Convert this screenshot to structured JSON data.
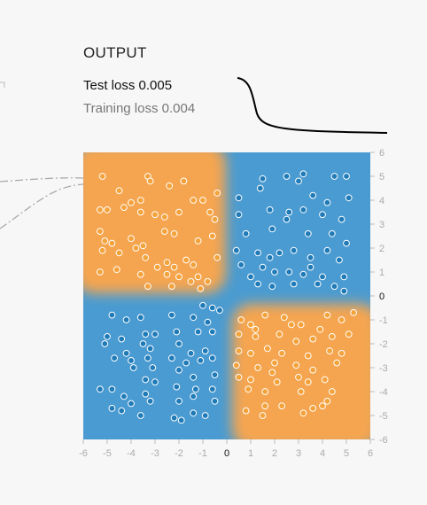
{
  "output": {
    "title": "OUTPUT",
    "test_loss_label": "Test loss",
    "test_loss_value": "0.005",
    "training_loss_label": "Training loss",
    "training_loss_value": "0.004"
  },
  "colors": {
    "orange": "#f5a54f",
    "blue": "#4a9bd1",
    "orange_point": "#f4a23a",
    "blue_point": "#1f7ab8",
    "loss_line": "#000000"
  },
  "chart_data": {
    "type": "scatter",
    "title": "",
    "xlabel": "",
    "ylabel": "",
    "xlim": [
      -6,
      6
    ],
    "ylim": [
      -6,
      6
    ],
    "x_ticks": [
      "-6",
      "-5",
      "-4",
      "-3",
      "-2",
      "-1",
      "0",
      "1",
      "2",
      "3",
      "4",
      "5",
      "6"
    ],
    "y_ticks": [
      "6",
      "5",
      "4",
      "3",
      "2",
      "1",
      "0",
      "-1",
      "-2",
      "-3",
      "-4",
      "-5",
      "-6"
    ],
    "background": "XOR decision regions: orange where x*y > 0, blue where x*y < 0",
    "series": [
      {
        "color": "orange",
        "points": [
          [
            -5.2,
            5.0
          ],
          [
            -4.5,
            4.4
          ],
          [
            -4.0,
            3.9
          ],
          [
            -3.6,
            4.0
          ],
          [
            -3.3,
            5.0
          ],
          [
            -3.2,
            4.8
          ],
          [
            -2.4,
            4.6
          ],
          [
            -1.8,
            4.8
          ],
          [
            -1.4,
            4.0
          ],
          [
            -0.4,
            4.3
          ],
          [
            -5.3,
            3.6
          ],
          [
            -5.0,
            3.6
          ],
          [
            -4.3,
            3.7
          ],
          [
            -3.6,
            3.5
          ],
          [
            -3.0,
            3.4
          ],
          [
            -2.6,
            3.3
          ],
          [
            -2.0,
            3.5
          ],
          [
            -0.7,
            3.5
          ],
          [
            -0.5,
            3.2
          ],
          [
            -1.0,
            4.0
          ],
          [
            -5.3,
            2.7
          ],
          [
            -5.1,
            2.3
          ],
          [
            -4.8,
            2.2
          ],
          [
            -4.0,
            2.4
          ],
          [
            -3.8,
            2.0
          ],
          [
            -3.5,
            2.1
          ],
          [
            -2.6,
            2.7
          ],
          [
            -2.2,
            2.6
          ],
          [
            -1.2,
            2.3
          ],
          [
            -0.6,
            2.5
          ],
          [
            -5.2,
            1.9
          ],
          [
            -4.5,
            1.8
          ],
          [
            -3.4,
            1.6
          ],
          [
            -2.9,
            1.2
          ],
          [
            -2.5,
            1.4
          ],
          [
            -2.2,
            1.2
          ],
          [
            -1.7,
            1.5
          ],
          [
            -1.4,
            1.3
          ],
          [
            -0.4,
            1.6
          ],
          [
            -5.3,
            1.0
          ],
          [
            -4.6,
            1.1
          ],
          [
            -3.6,
            0.9
          ],
          [
            -2.5,
            0.9
          ],
          [
            -2.0,
            0.8
          ],
          [
            -1.5,
            0.6
          ],
          [
            -1.2,
            0.8
          ],
          [
            -0.8,
            0.6
          ],
          [
            -3.3,
            0.4
          ],
          [
            -2.3,
            0.4
          ],
          [
            -1.1,
            0.3
          ],
          [
            0.6,
            -1.0
          ],
          [
            1.0,
            -1.2
          ],
          [
            1.6,
            -0.8
          ],
          [
            2.4,
            -0.9
          ],
          [
            3.1,
            -1.2
          ],
          [
            4.2,
            -0.8
          ],
          [
            4.8,
            -1.0
          ],
          [
            5.3,
            -0.7
          ],
          [
            0.5,
            -1.6
          ],
          [
            1.2,
            -1.7
          ],
          [
            2.2,
            -1.6
          ],
          [
            2.9,
            -1.9
          ],
          [
            3.6,
            -1.8
          ],
          [
            4.4,
            -1.7
          ],
          [
            5.1,
            -1.6
          ],
          [
            0.5,
            -2.3
          ],
          [
            1.0,
            -2.4
          ],
          [
            1.7,
            -2.2
          ],
          [
            2.3,
            -2.4
          ],
          [
            3.4,
            -2.5
          ],
          [
            4.3,
            -2.3
          ],
          [
            4.8,
            -2.4
          ],
          [
            0.4,
            -2.9
          ],
          [
            1.3,
            -3.0
          ],
          [
            2.0,
            -2.8
          ],
          [
            2.9,
            -2.9
          ],
          [
            3.6,
            -3.1
          ],
          [
            4.6,
            -2.8
          ],
          [
            0.5,
            -3.4
          ],
          [
            1.0,
            -3.5
          ],
          [
            2.1,
            -3.6
          ],
          [
            3.0,
            -3.4
          ],
          [
            3.4,
            -3.6
          ],
          [
            4.1,
            -3.5
          ],
          [
            0.9,
            -3.9
          ],
          [
            1.6,
            -4.0
          ],
          [
            3.1,
            -4.0
          ],
          [
            4.4,
            -4.0
          ],
          [
            0.8,
            -4.8
          ],
          [
            1.6,
            -4.6
          ],
          [
            1.5,
            -5.0
          ],
          [
            2.3,
            -4.6
          ],
          [
            3.2,
            -4.9
          ],
          [
            3.6,
            -4.7
          ],
          [
            4.0,
            -4.6
          ],
          [
            1.2,
            -1.4
          ],
          [
            2.7,
            -1.2
          ],
          [
            3.9,
            -1.4
          ],
          [
            1.9,
            -3.2
          ],
          [
            4.2,
            -4.4
          ]
        ]
      },
      {
        "color": "blue",
        "points": [
          [
            0.5,
            4.1
          ],
          [
            1.5,
            4.9
          ],
          [
            1.4,
            4.5
          ],
          [
            2.5,
            5.0
          ],
          [
            3.2,
            5.1
          ],
          [
            3.0,
            4.8
          ],
          [
            4.5,
            5.0
          ],
          [
            5.0,
            5.0
          ],
          [
            5.1,
            4.1
          ],
          [
            0.5,
            3.4
          ],
          [
            1.8,
            3.6
          ],
          [
            2.6,
            3.5
          ],
          [
            3.2,
            3.6
          ],
          [
            4.0,
            3.4
          ],
          [
            4.8,
            3.2
          ],
          [
            3.6,
            4.2
          ],
          [
            4.2,
            3.9
          ],
          [
            0.8,
            2.6
          ],
          [
            1.9,
            2.8
          ],
          [
            2.5,
            3.2
          ],
          [
            3.4,
            2.6
          ],
          [
            4.4,
            2.6
          ],
          [
            5.0,
            2.2
          ],
          [
            0.4,
            1.9
          ],
          [
            1.3,
            1.8
          ],
          [
            1.8,
            1.6
          ],
          [
            2.2,
            1.8
          ],
          [
            2.8,
            1.9
          ],
          [
            3.5,
            1.6
          ],
          [
            4.2,
            1.9
          ],
          [
            4.7,
            1.5
          ],
          [
            0.6,
            1.3
          ],
          [
            1.5,
            1.2
          ],
          [
            2.0,
            1.0
          ],
          [
            2.6,
            1.0
          ],
          [
            3.2,
            0.9
          ],
          [
            4.0,
            0.8
          ],
          [
            4.9,
            0.8
          ],
          [
            1.3,
            0.5
          ],
          [
            1.9,
            0.4
          ],
          [
            2.8,
            0.5
          ],
          [
            3.8,
            0.5
          ],
          [
            4.5,
            0.4
          ],
          [
            4.9,
            0.2
          ],
          [
            3.5,
            1.2
          ],
          [
            1.0,
            0.8
          ],
          [
            -4.8,
            -0.8
          ],
          [
            -4.2,
            -1.0
          ],
          [
            -3.6,
            -0.9
          ],
          [
            -2.3,
            -0.8
          ],
          [
            -1.4,
            -0.9
          ],
          [
            -1.0,
            -0.4
          ],
          [
            -0.6,
            -0.5
          ],
          [
            -0.3,
            -0.6
          ],
          [
            -0.8,
            -1.1
          ],
          [
            -5.0,
            -1.7
          ],
          [
            -4.4,
            -1.8
          ],
          [
            -3.4,
            -1.6
          ],
          [
            -3.0,
            -1.6
          ],
          [
            -2.1,
            -1.5
          ],
          [
            -1.2,
            -1.5
          ],
          [
            -0.6,
            -1.5
          ],
          [
            -5.1,
            -2.0
          ],
          [
            -4.2,
            -2.4
          ],
          [
            -3.5,
            -2.0
          ],
          [
            -3.2,
            -2.2
          ],
          [
            -2.0,
            -2.0
          ],
          [
            -1.5,
            -2.4
          ],
          [
            -0.9,
            -2.3
          ],
          [
            -4.7,
            -2.6
          ],
          [
            -4.0,
            -2.7
          ],
          [
            -3.3,
            -2.6
          ],
          [
            -2.3,
            -2.6
          ],
          [
            -1.7,
            -2.8
          ],
          [
            -1.1,
            -2.7
          ],
          [
            -0.6,
            -2.6
          ],
          [
            -3.9,
            -3.0
          ],
          [
            -3.1,
            -3.0
          ],
          [
            -2.0,
            -3.1
          ],
          [
            -1.4,
            -3.4
          ],
          [
            -0.5,
            -3.3
          ],
          [
            -5.3,
            -3.9
          ],
          [
            -4.8,
            -3.9
          ],
          [
            -3.4,
            -3.5
          ],
          [
            -3.0,
            -3.6
          ],
          [
            -2.1,
            -3.8
          ],
          [
            -1.3,
            -3.9
          ],
          [
            -0.6,
            -3.9
          ],
          [
            -4.3,
            -4.2
          ],
          [
            -3.4,
            -4.1
          ],
          [
            -2.0,
            -4.4
          ],
          [
            -1.4,
            -4.2
          ],
          [
            -0.5,
            -4.4
          ],
          [
            -4.8,
            -4.7
          ],
          [
            -4.0,
            -4.5
          ],
          [
            -3.2,
            -4.4
          ],
          [
            -1.4,
            -4.9
          ],
          [
            -4.4,
            -4.8
          ],
          [
            -3.6,
            -5.0
          ],
          [
            -2.2,
            -5.1
          ],
          [
            -1.9,
            -5.2
          ],
          [
            -0.9,
            -5.0
          ]
        ]
      }
    ]
  }
}
